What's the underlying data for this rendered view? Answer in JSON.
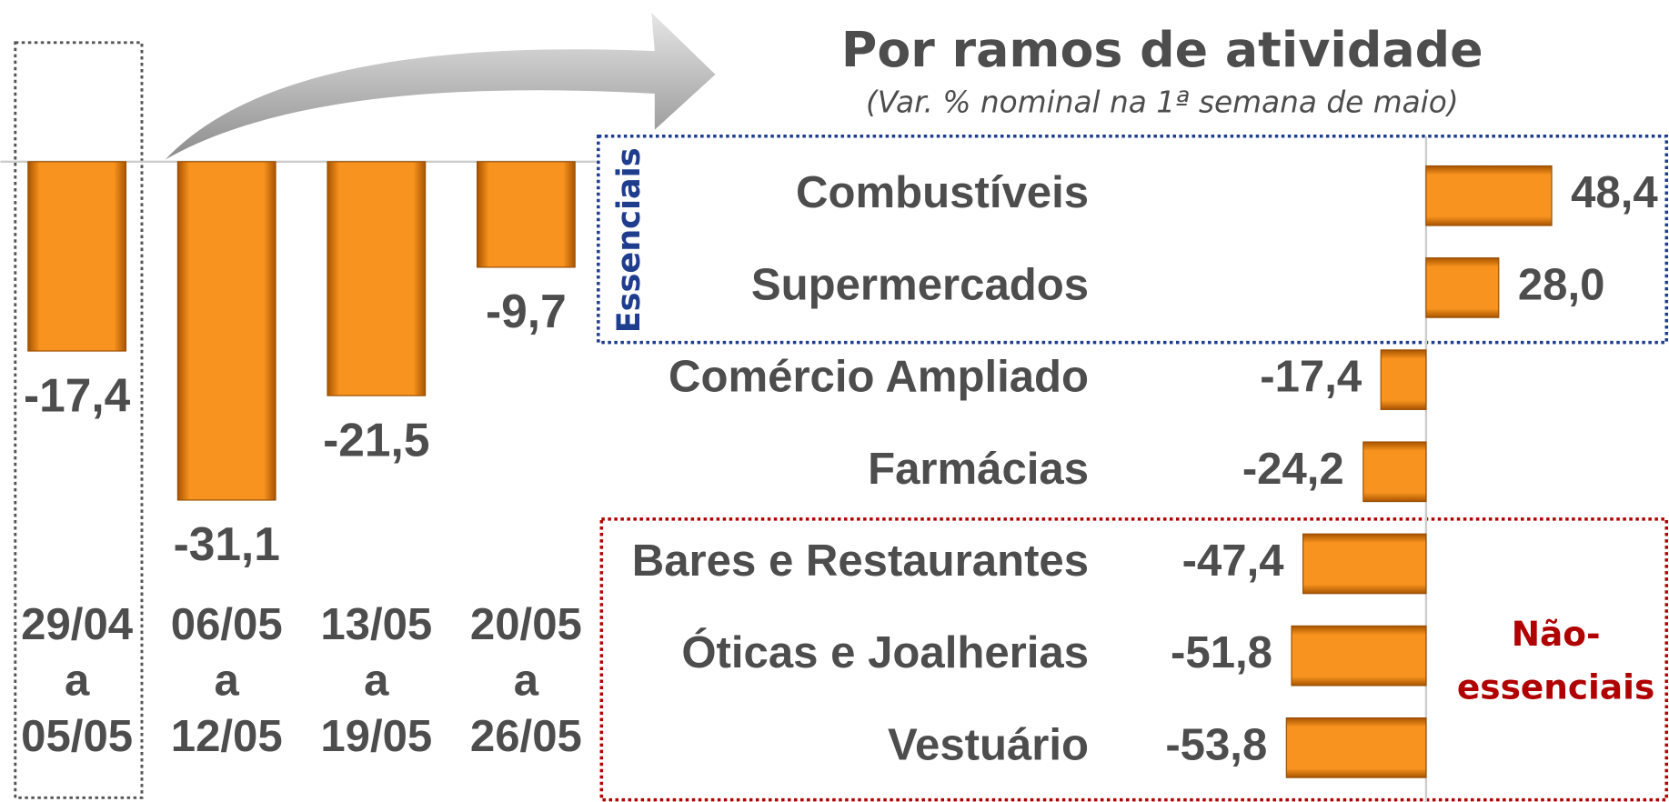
{
  "chart_data": [
    {
      "type": "bar",
      "categories": [
        [
          "29/04",
          "a",
          "05/05"
        ],
        [
          "06/05",
          "a",
          "12/05"
        ],
        [
          "13/05",
          "a",
          "19/05"
        ],
        [
          "20/05",
          "a",
          "26/05"
        ]
      ],
      "values": [
        -17.4,
        -31.1,
        -21.5,
        -9.7
      ],
      "value_labels": [
        "-17,4",
        "-31,1",
        "-21,5",
        "-9,7"
      ],
      "color": "#f7931e"
    },
    {
      "type": "hbar",
      "title": "Por ramos de atividade",
      "subtitle": "(Var. % nominal na 1ª semana de maio)",
      "categories": [
        "Combustíveis",
        "Supermercados",
        "Comércio Ampliado",
        "Farmácias",
        "Bares e Restaurantes",
        "Óticas e Joalherias",
        "Vestuário"
      ],
      "values": [
        48.4,
        28.0,
        -17.4,
        -24.2,
        -47.4,
        -51.8,
        -53.8
      ],
      "value_labels": [
        "48,4",
        "28,0",
        "-17,4",
        "-24,2",
        "-47,4",
        "-51,8",
        "-53,8"
      ],
      "color": "#f7931e",
      "groups": [
        "Essenciais",
        [
          "Não-",
          "essenciais"
        ]
      ]
    }
  ]
}
